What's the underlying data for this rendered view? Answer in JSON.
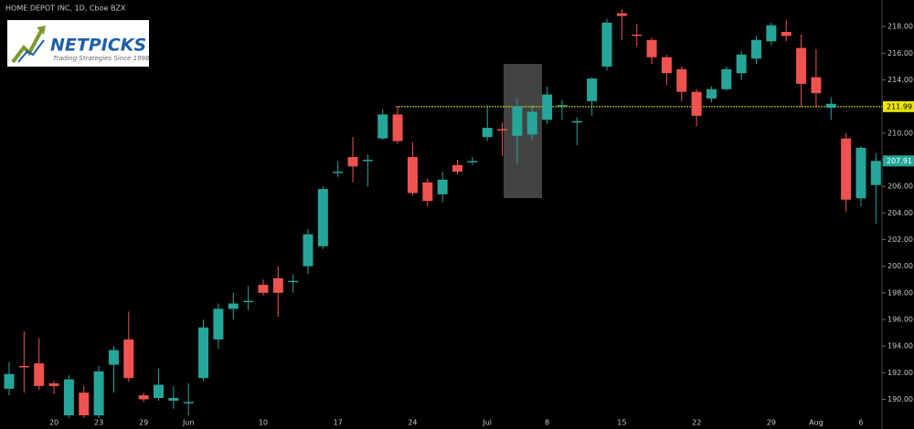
{
  "chart_data": {
    "type": "candlestick",
    "title": "HOME DEPOT INC, 1D, Cboe BZX",
    "logo": {
      "name": "NETPICKS",
      "tagline": "Trading Strategies Since 1998"
    },
    "categories": [
      null,
      null,
      null,
      "20",
      null,
      null,
      "23",
      null,
      null,
      "29",
      null,
      null,
      "Jun",
      null,
      null,
      null,
      null,
      "10",
      null,
      null,
      null,
      null,
      "17",
      null,
      null,
      null,
      null,
      "24",
      null,
      null,
      null,
      null,
      "Jul",
      null,
      null,
      null,
      "8",
      null,
      null,
      null,
      null,
      "15",
      null,
      null,
      null,
      null,
      "22",
      null,
      null,
      null,
      null,
      "29",
      null,
      null,
      "Aug",
      null,
      null,
      "6",
      null
    ],
    "open": [
      190.8,
      192.5,
      192.7,
      191.2,
      188.8,
      190.5,
      188.8,
      192.6,
      194.5,
      190.3,
      190.1,
      189.9,
      189.7,
      191.6,
      194.5,
      196.8,
      197.3,
      198.6,
      199.1,
      198.8,
      200.0,
      201.5,
      207.0,
      208.2,
      207.9,
      209.6,
      211.4,
      208.2,
      206.3,
      205.4,
      207.6,
      207.8,
      209.7,
      210.3,
      209.8,
      209.9,
      211.0,
      212.0,
      210.8,
      212.4,
      215.0,
      219.0,
      217.4,
      217.0,
      215.7,
      214.8,
      213.1,
      212.6,
      213.3,
      214.5,
      215.6,
      216.9,
      217.6,
      216.4,
      214.2,
      211.9,
      209.6,
      205.1,
      206.1
    ],
    "high": [
      192.8,
      195.1,
      194.6,
      191.4,
      191.8,
      191.0,
      192.5,
      194.0,
      196.6,
      190.5,
      192.3,
      191.0,
      191.2,
      196.0,
      197.2,
      198.0,
      198.5,
      199.0,
      200.0,
      199.4,
      202.8,
      206.0,
      207.9,
      209.7,
      208.4,
      211.8,
      212.0,
      209.3,
      206.6,
      207.1,
      208.0,
      208.2,
      212.1,
      210.8,
      212.6,
      212.1,
      213.5,
      212.5,
      211.2,
      214.2,
      218.6,
      219.3,
      218.2,
      217.2,
      215.9,
      215.0,
      213.3,
      213.5,
      215.0,
      216.2,
      217.3,
      218.3,
      218.5,
      217.4,
      216.3,
      212.7,
      210.0,
      209.0,
      208.5
    ],
    "low": [
      190.3,
      190.5,
      190.7,
      190.4,
      188.6,
      188.6,
      188.6,
      190.5,
      191.3,
      189.8,
      189.9,
      189.3,
      188.8,
      191.4,
      193.8,
      196.0,
      196.7,
      197.8,
      196.2,
      198.0,
      199.4,
      201.3,
      206.7,
      206.3,
      206.0,
      209.5,
      209.2,
      205.3,
      204.5,
      204.8,
      206.9,
      207.6,
      209.4,
      208.3,
      207.7,
      209.5,
      210.7,
      211.0,
      209.1,
      211.3,
      214.7,
      217.0,
      216.5,
      215.2,
      213.6,
      212.4,
      210.5,
      212.3,
      213.2,
      214.0,
      215.2,
      216.6,
      216.9,
      212.0,
      212.0,
      211.0,
      204.1,
      204.5,
      203.2
    ],
    "close": [
      191.9,
      192.4,
      191.0,
      191.0,
      191.5,
      188.8,
      192.1,
      193.7,
      191.6,
      190.0,
      191.1,
      190.1,
      189.8,
      195.4,
      196.8,
      197.2,
      197.4,
      198.0,
      198.0,
      198.9,
      202.4,
      205.8,
      207.1,
      207.5,
      208.0,
      211.4,
      209.4,
      205.5,
      204.9,
      206.5,
      207.1,
      207.9,
      210.4,
      210.2,
      212.0,
      211.6,
      212.9,
      212.1,
      210.9,
      214.1,
      218.3,
      218.8,
      217.3,
      215.7,
      214.5,
      213.1,
      211.3,
      213.3,
      214.8,
      215.9,
      217.0,
      218.1,
      217.3,
      213.7,
      213.0,
      212.2,
      205.0,
      208.9,
      207.91
    ],
    "up_color": "#26a69a",
    "down_color": "#ef5350",
    "ylim": [
      188.8,
      220
    ],
    "yticks": [
      {
        "value": 190,
        "label": "190.00"
      },
      {
        "value": 192,
        "label": "192.00"
      },
      {
        "value": 194,
        "label": "194.00"
      },
      {
        "value": 196,
        "label": "196.00"
      },
      {
        "value": 198,
        "label": "198.00"
      },
      {
        "value": 200,
        "label": "200.00"
      },
      {
        "value": 202,
        "label": "202.00"
      },
      {
        "value": 204,
        "label": "204.00"
      },
      {
        "value": 206,
        "label": "206.00"
      },
      {
        "value": 208,
        "label": "208.00"
      },
      {
        "value": 210,
        "label": "210.00"
      },
      {
        "value": 212,
        "label": "212.00"
      },
      {
        "value": 214,
        "label": "214.00"
      },
      {
        "value": 216,
        "label": "216.00"
      },
      {
        "value": 218,
        "label": "218.00"
      }
    ],
    "hline": {
      "value": 211.99,
      "color": "#e6e600"
    }
  }
}
